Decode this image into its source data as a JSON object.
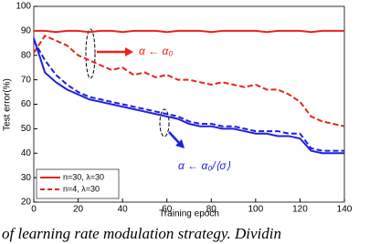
{
  "chart_data": {
    "type": "line",
    "xlabel": "Training epoch",
    "ylabel": "Test error(%)",
    "x": [
      0,
      5,
      10,
      15,
      20,
      25,
      30,
      35,
      40,
      45,
      50,
      55,
      60,
      65,
      70,
      75,
      80,
      85,
      90,
      95,
      100,
      105,
      110,
      115,
      120,
      125,
      130,
      135,
      140
    ],
    "series": [
      {
        "name": "n=30, λ=30",
        "color": "#e8231d",
        "dash": false,
        "values": [
          90,
          90,
          89.5,
          90,
          90,
          89.5,
          90,
          90,
          89.5,
          90,
          90,
          90,
          89.5,
          90,
          90,
          90,
          89.5,
          90,
          90,
          90,
          90,
          89.5,
          90,
          90,
          90,
          89.5,
          90,
          90,
          90
        ]
      },
      {
        "name": "n=4, λ=30",
        "color": "#e8231d",
        "dash": true,
        "values": [
          81,
          88,
          86,
          84,
          80,
          78,
          76,
          74,
          75,
          72,
          73,
          71,
          72,
          70,
          70,
          69,
          68,
          69,
          68,
          67,
          68,
          66,
          66,
          64,
          61,
          55,
          53,
          52,
          51
        ]
      },
      {
        "color": "#1f1fe0",
        "dash": false,
        "values": [
          87,
          73,
          69,
          66,
          64,
          62,
          61,
          60,
          59,
          58,
          57,
          56,
          55,
          54,
          52,
          51,
          51,
          50,
          50,
          49,
          48,
          48,
          47,
          47,
          46,
          41,
          40,
          40,
          40
        ]
      },
      {
        "color": "#1f1fe0",
        "dash": true,
        "values": [
          86,
          78,
          72,
          68,
          65,
          63,
          62,
          61,
          60,
          59,
          58,
          57,
          56,
          55,
          53,
          52,
          52,
          51,
          51,
          50,
          49,
          49,
          49,
          48,
          48,
          42,
          41,
          41,
          41
        ]
      }
    ],
    "xlim": [
      0,
      140
    ],
    "xticks": [
      0,
      20,
      40,
      60,
      80,
      100,
      120,
      140
    ],
    "ylim": [
      20,
      100
    ],
    "yticks": [
      20,
      30,
      40,
      50,
      60,
      70,
      80,
      90,
      100
    ],
    "grid": false,
    "legend": "lower left",
    "annotations": [
      "α ← α₀",
      "α ← α₀/⟨σ⟩"
    ]
  },
  "caption": "of learning rate modulation strategy. Dividin"
}
